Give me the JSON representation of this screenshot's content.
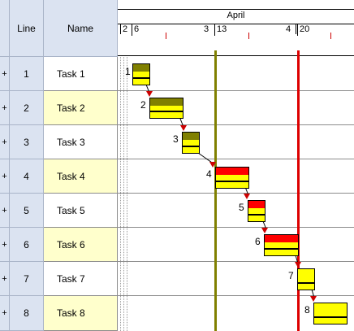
{
  "table": {
    "headers": {
      "line": "Line",
      "name": "Name"
    },
    "expand_glyph": "+",
    "rows": [
      {
        "line": "1",
        "name": "Task 1"
      },
      {
        "line": "2",
        "name": "Task 2"
      },
      {
        "line": "3",
        "name": "Task 3"
      },
      {
        "line": "4",
        "name": "Task 4"
      },
      {
        "line": "5",
        "name": "Task 5"
      },
      {
        "line": "6",
        "name": "Task 6"
      },
      {
        "line": "7",
        "name": "Task 7"
      },
      {
        "line": "8",
        "name": "Task 8"
      }
    ]
  },
  "timeline": {
    "month": "April",
    "weeks": [
      "2",
      "3",
      "4"
    ],
    "days": [
      "6",
      "13",
      "20"
    ]
  },
  "gantt": {
    "bar_labels": [
      "1",
      "2",
      "3",
      "4",
      "5",
      "6",
      "7",
      "8"
    ],
    "colors": {
      "olive": "#808000",
      "red": "#ff0000",
      "yellow": "#ffff00",
      "today_line": "#808000",
      "deadline_line": "#dd0000"
    }
  }
}
